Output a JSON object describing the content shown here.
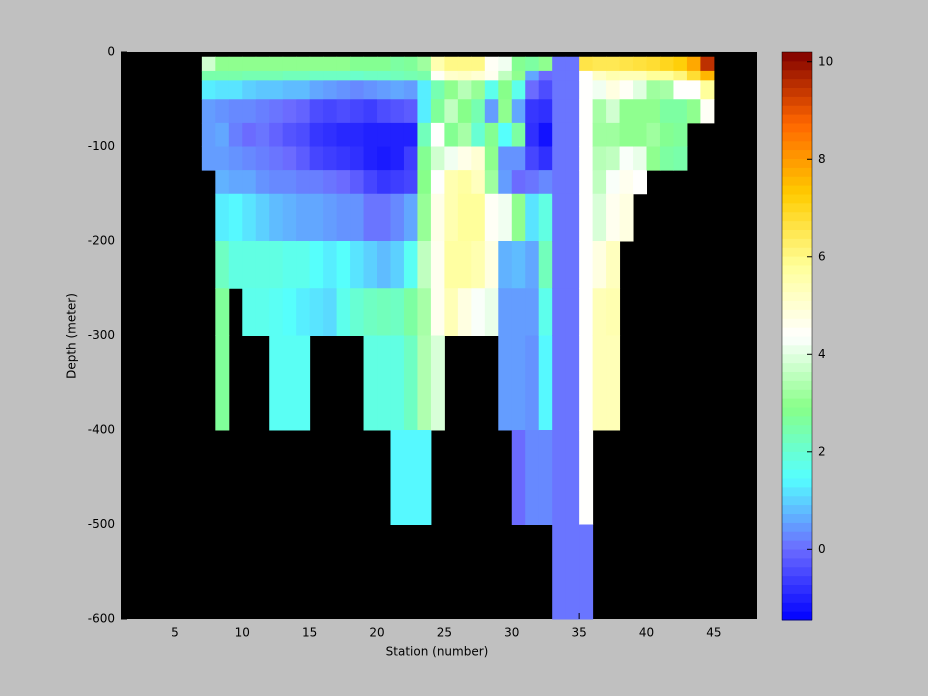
{
  "chart_data": {
    "type": "heatmap",
    "xlabel": "Station (number)",
    "ylabel": "Depth (meter)",
    "xlim": [
      1,
      48.2
    ],
    "ylim": [
      -600,
      0
    ],
    "xticks": [
      5,
      10,
      15,
      20,
      25,
      30,
      35,
      40,
      45
    ],
    "yticks": [
      0,
      -100,
      -200,
      -300,
      -400,
      -500,
      -600
    ],
    "clim": [
      -1.45,
      10.2
    ],
    "cticks": [
      0,
      2,
      4,
      6,
      8,
      10
    ],
    "colormap": [
      "#0000ff",
      "#6b6bff",
      "#55ffff",
      "#88ff88",
      "#ffffff",
      "#ffff99",
      "#ffcc00",
      "#ff6600",
      "#800000"
    ],
    "background": "#000000",
    "x": [
      7,
      8,
      9,
      10,
      11,
      12,
      13,
      14,
      15,
      16,
      17,
      18,
      19,
      20,
      21,
      22,
      23,
      24,
      25,
      26,
      27,
      28,
      29,
      30,
      31,
      32,
      33,
      34,
      35,
      36,
      37,
      38,
      39,
      40,
      41,
      42,
      43,
      44,
      45
    ],
    "y": [
      -5,
      -20,
      -30,
      -50,
      -75,
      -100,
      -125,
      -150,
      -200,
      -250,
      -300,
      -400,
      -500,
      -600
    ],
    "values": [
      [
        3.8,
        2.5,
        1.3,
        0.5,
        0.5,
        0.5,
        null,
        null,
        null,
        null,
        null,
        null,
        null
      ],
      [
        3,
        2.5,
        1.2,
        0.4,
        0.6,
        0.5,
        0.7,
        1.3,
        2.2,
        2.7,
        2.7,
        null,
        null
      ],
      [
        3,
        2.5,
        1.2,
        0.3,
        0.2,
        0.4,
        0.6,
        1.4,
        1.8,
        null,
        null,
        null,
        null
      ],
      [
        3,
        2.4,
        1,
        0.3,
        0,
        0.3,
        0.6,
        1.2,
        1.8,
        1.7,
        null,
        null,
        null
      ],
      [
        3,
        2.4,
        0.9,
        0.2,
        0.1,
        0.2,
        0.4,
        1,
        1.8,
        1.7,
        null,
        null,
        null
      ],
      [
        3,
        2.4,
        0.9,
        0.1,
        -0.1,
        0.1,
        0.3,
        0.8,
        1.8,
        1.6,
        1.6,
        null,
        null
      ],
      [
        3,
        2.3,
        0.8,
        0,
        -0.3,
        0,
        0.3,
        0.7,
        1.7,
        1.5,
        1.6,
        null,
        null
      ],
      [
        3,
        2.3,
        0.8,
        -0.1,
        -0.4,
        -0.2,
        0.2,
        0.6,
        1.7,
        1.3,
        1.6,
        null,
        null
      ],
      [
        3,
        2.2,
        0.6,
        -0.4,
        -0.7,
        -0.5,
        0.2,
        0.6,
        1.5,
        1.2,
        null,
        null,
        null
      ],
      [
        3,
        2.2,
        0.5,
        -0.5,
        -0.8,
        -0.6,
        0.1,
        0.5,
        1.3,
        1.1,
        null,
        null,
        null
      ],
      [
        3,
        2.2,
        0.4,
        -0.4,
        -0.9,
        -0.7,
        0,
        0.4,
        1.5,
        1.7,
        null,
        null,
        null
      ],
      [
        2.8,
        2.1,
        0.3,
        -0.5,
        -0.9,
        -0.8,
        -0.2,
        0.4,
        1.2,
        2,
        null,
        null,
        null
      ],
      [
        2.8,
        2.2,
        0.4,
        -0.6,
        -1,
        -1,
        -0.5,
        0.1,
        1,
        2.2,
        1.8,
        null,
        null
      ],
      [
        2.8,
        2.2,
        0.5,
        -0.4,
        -1,
        -1.1,
        -0.7,
        0.1,
        0.8,
        2.3,
        1.8,
        null,
        null
      ],
      [
        2.6,
        2.3,
        0.6,
        -0.3,
        -1,
        -1,
        -0.6,
        0.3,
        1,
        2.2,
        1.8,
        1.4,
        null
      ],
      [
        2.7,
        2.4,
        0.5,
        -0.2,
        -1,
        -0.6,
        -0.5,
        0.6,
        1.6,
        2.6,
        2.2,
        1.4,
        null
      ],
      [
        3.2,
        2.5,
        1.3,
        1.3,
        2.3,
        2.8,
        2.9,
        3.1,
        3.6,
        3.3,
        3.4,
        1.4,
        null
      ],
      [
        5.5,
        4.5,
        2.4,
        2.7,
        4.4,
        3.8,
        4.4,
        4.7,
        4.6,
        4.6,
        3.9,
        null,
        null
      ],
      [
        6,
        5.1,
        3,
        3.6,
        2.8,
        4.2,
        5.5,
        5.5,
        5.7,
        5.4,
        null,
        null,
        null
      ],
      [
        6,
        5.2,
        3.5,
        2.9,
        3.3,
        4.7,
        5.7,
        5.8,
        5.7,
        4.8,
        null,
        null,
        null
      ],
      [
        6,
        5,
        3.1,
        2.4,
        2,
        5,
        5.3,
        5.8,
        5.5,
        4.3,
        null,
        null,
        null
      ],
      [
        4.5,
        4.6,
        1.7,
        0.5,
        2.8,
        3,
        3.2,
        4.5,
        4.8,
        4.1,
        null,
        null,
        null
      ],
      [
        4.2,
        3.6,
        2.9,
        3,
        1.5,
        0.4,
        0.5,
        4.2,
        0.7,
        0.5,
        0.5,
        null,
        null
      ],
      [
        2.8,
        3,
        1.7,
        0.6,
        2.6,
        0.4,
        0,
        3,
        0.8,
        0.5,
        0.5,
        0,
        null
      ],
      [
        2.6,
        0.6,
        0,
        -0.7,
        -0.8,
        -0.5,
        0.1,
        1.2,
        0.6,
        0.5,
        0.4,
        0.3,
        null
      ],
      [
        3,
        0,
        -0.4,
        -0.8,
        -1.2,
        -0.8,
        0.3,
        1.8,
        2.3,
        1.7,
        1.4,
        0.3,
        null
      ],
      [
        0.1,
        0.1,
        0.1,
        0.1,
        0.1,
        0.1,
        0.1,
        0.1,
        0.1,
        0.1,
        0.1,
        0.1,
        0.1
      ],
      [
        0.1,
        0.1,
        0.1,
        0.1,
        0.1,
        0.1,
        0.1,
        0.1,
        0.1,
        0.1,
        0.1,
        0.1,
        0.1
      ],
      [
        6.6,
        4.4,
        4.4,
        4.4,
        4.4,
        4.4,
        4.4,
        4.4,
        4.4,
        4.4,
        4.4,
        4.4,
        0.1
      ],
      [
        6.5,
        5.2,
        4.2,
        3.3,
        3.2,
        3.5,
        3.6,
        3.9,
        4.8,
        5.4,
        5.4,
        null,
        null
      ],
      [
        6.5,
        5.5,
        4.8,
        3.8,
        3.2,
        3.6,
        4.3,
        4.6,
        5.3,
        5.5,
        5.4,
        null,
        null
      ],
      [
        6.6,
        5.4,
        4.5,
        3,
        3,
        4.3,
        4.6,
        4.8,
        null,
        null,
        null,
        null,
        null
      ],
      [
        6.7,
        5.4,
        4,
        3,
        3,
        4.1,
        4.4,
        null,
        null,
        null,
        null,
        null,
        null
      ],
      [
        6.8,
        5.8,
        3.2,
        3,
        3.2,
        3,
        null,
        null,
        null,
        null,
        null,
        null,
        null
      ],
      [
        7,
        5.8,
        3.3,
        2.6,
        2.8,
        2.6,
        null,
        null,
        null,
        null,
        null,
        null,
        null
      ],
      [
        7.2,
        6.1,
        4.4,
        2.6,
        2.7,
        2.5,
        null,
        null,
        null,
        null,
        null,
        null,
        null
      ],
      [
        7.8,
        6.8,
        4.4,
        3,
        null,
        null,
        null,
        null,
        null,
        null,
        null,
        null,
        null
      ],
      [
        9.5,
        7.6,
        5.8,
        4.5,
        null,
        null,
        null,
        null,
        null,
        null,
        null,
        null,
        null
      ]
    ]
  }
}
